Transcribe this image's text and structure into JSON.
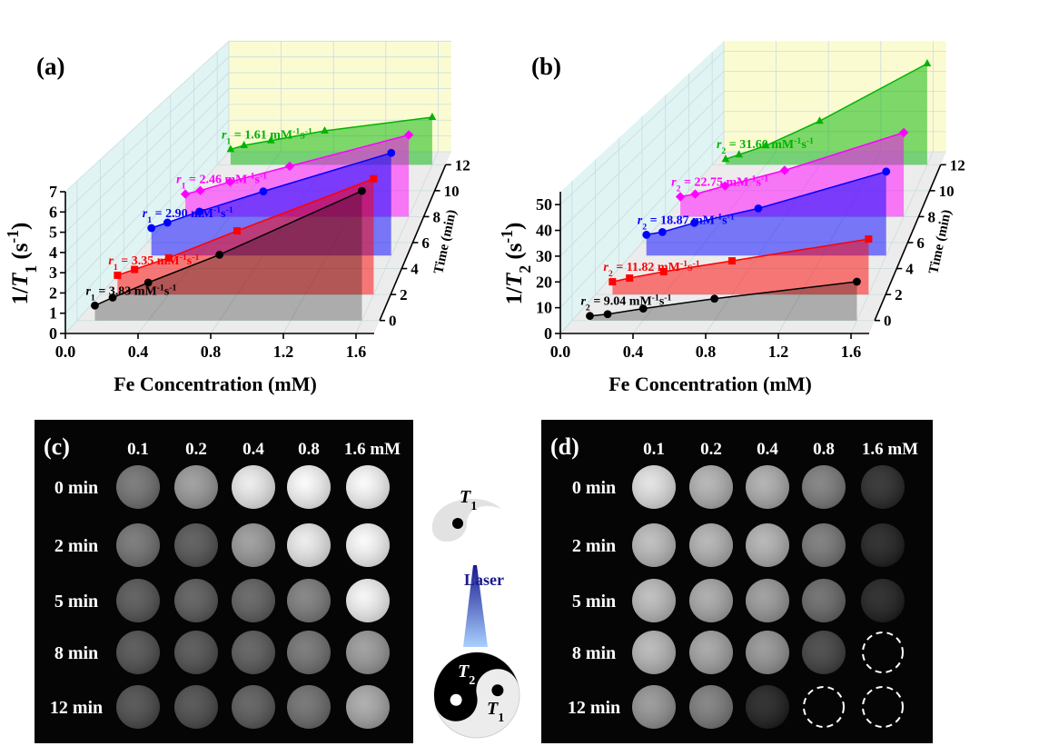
{
  "chart_data": [
    {
      "type": "line3d",
      "panel_label": "(a)",
      "xlabel": "Fe Concentration (mM)",
      "ylabel": [
        "1/",
        "T",
        "1",
        " (s",
        "-1",
        ")"
      ],
      "zlabel": "Time (min)",
      "xlim": [
        0,
        1.7
      ],
      "xticks": [
        {
          "value": 0,
          "label": "0.0"
        },
        0.4,
        0.8,
        1.2,
        1.6
      ],
      "ylim": [
        0,
        7
      ],
      "yticks": [
        0,
        1,
        2,
        3,
        4,
        5,
        6,
        7
      ],
      "zlim": [
        -1,
        13
      ],
      "zticks": [
        0,
        2,
        4,
        6,
        8,
        10,
        12
      ],
      "grid": true,
      "x": [
        0.1,
        0.2,
        0.4,
        0.8,
        1.6
      ],
      "series": [
        {
          "label": [
            "r",
            "1",
            " = 3.83 mM",
            "-1",
            "s",
            "-1"
          ],
          "z": 0,
          "color": "#000000",
          "marker": "circle",
          "values": [
            0.75,
            1.15,
            1.9,
            3.3,
            6.5
          ]
        },
        {
          "label": [
            "r",
            "1",
            " = 3.35 mM",
            "-1",
            "s",
            "-1"
          ],
          "z": 2,
          "color": "#ff0000",
          "marker": "square",
          "values": [
            1.0,
            1.3,
            1.9,
            3.3,
            6.0
          ]
        },
        {
          "label": [
            "r",
            "1",
            " = 2.90 mM",
            "-1",
            "s",
            "-1"
          ],
          "z": 5,
          "color": "#0000ff",
          "marker": "circle",
          "values": [
            1.5,
            1.8,
            2.4,
            3.5,
            5.6
          ]
        },
        {
          "label": [
            "r",
            "1",
            " = 2.46 mM",
            "-1",
            "s",
            "-1"
          ],
          "z": 8,
          "color": "#ff00ff",
          "marker": "diamond",
          "values": [
            1.3,
            1.5,
            2.0,
            2.9,
            4.7
          ]
        },
        {
          "label": [
            "r",
            "1",
            " = 1.61 mM",
            "-1",
            "s",
            "-1"
          ],
          "z": 12,
          "color": "#00b400",
          "marker": "triangle",
          "values": [
            0.95,
            1.2,
            1.5,
            2.1,
            2.95
          ]
        }
      ]
    },
    {
      "type": "line3d",
      "panel_label": "(b)",
      "xlabel": "Fe Concentration (mM)",
      "ylabel": [
        "1/",
        "T",
        "2",
        " (s",
        "-1",
        ")"
      ],
      "zlabel": "Time (min)",
      "xlim": [
        0,
        1.7
      ],
      "xticks": [
        {
          "value": 0,
          "label": "0.0"
        },
        0.4,
        0.8,
        1.2,
        1.6
      ],
      "ylim": [
        0,
        55
      ],
      "yticks": [
        0,
        10,
        20,
        30,
        40,
        50
      ],
      "zlim": [
        -1,
        13
      ],
      "zticks": [
        0,
        2,
        4,
        6,
        8,
        10,
        12
      ],
      "grid": true,
      "x": [
        0.1,
        0.2,
        0.4,
        0.8,
        1.6
      ],
      "series": [
        {
          "label": [
            "r",
            "2",
            " = 9.04 mM",
            "-1",
            "s",
            "-1"
          ],
          "z": 0,
          "color": "#000000",
          "marker": "circle",
          "values": [
            1.8,
            2.5,
            4.7,
            8.6,
            15.3
          ]
        },
        {
          "label": [
            "r",
            "2",
            " = 11.82 mM",
            "-1",
            "s",
            "-1"
          ],
          "z": 2,
          "color": "#ff0000",
          "marker": "square",
          "values": [
            5.2,
            6.7,
            9.3,
            13.7,
            22.6
          ]
        },
        {
          "label": [
            "r",
            "2",
            " = 18.87 mM",
            "-1",
            "s",
            "-1"
          ],
          "z": 5,
          "color": "#0000ff",
          "marker": "circle",
          "values": [
            8.9,
            10.1,
            14.0,
            20.2,
            36.0
          ]
        },
        {
          "label": [
            "r",
            "2",
            " = 22.75 mM",
            "-1",
            "s",
            "-1"
          ],
          "z": 8,
          "color": "#ff00ff",
          "marker": "diamond",
          "values": [
            9.0,
            10.2,
            13.9,
            20.9,
            38.0
          ]
        },
        {
          "label": [
            "r",
            "2",
            " = 31.60 mM",
            "-1",
            "s",
            "-1"
          ],
          "z": 12,
          "color": "#00b400",
          "marker": "triangle",
          "values": [
            2.7,
            4.9,
            9.3,
            21.3,
            49.3
          ]
        }
      ]
    }
  ],
  "images": [
    {
      "panel_label": "(c)",
      "columns": [
        "0.1",
        "0.2",
        "0.4",
        "0.8",
        "1.6 mM"
      ],
      "rows": [
        "0 min",
        "2 min",
        "5 min",
        "8 min",
        "12 min"
      ]
    },
    {
      "panel_label": "(d)",
      "columns": [
        "0.1",
        "0.2",
        "0.4",
        "0.8",
        "1.6 mM"
      ],
      "rows": [
        "0 min",
        "2 min",
        "5 min",
        "8 min",
        "12 min"
      ]
    }
  ],
  "diagram": {
    "top_label": [
      "T",
      "1"
    ],
    "arrow_label": "Laser",
    "bottom_labels": [
      [
        "T",
        "2"
      ],
      [
        "T",
        "1"
      ]
    ]
  }
}
